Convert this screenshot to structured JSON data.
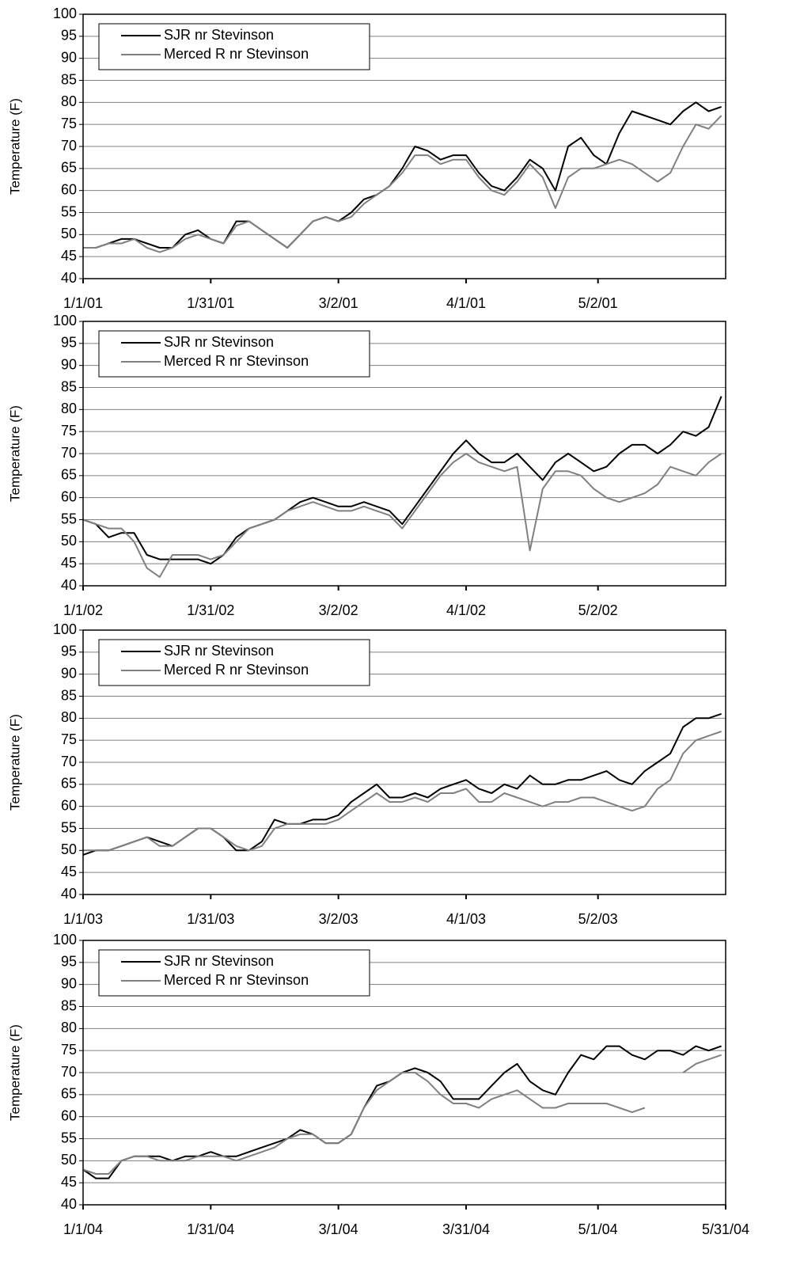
{
  "chart_data": [
    {
      "type": "line",
      "ylabel": "Temperature (F)",
      "legend": "upper left",
      "grid": true,
      "x": [
        0,
        3,
        6,
        9,
        12,
        15,
        18,
        21,
        24,
        27,
        30,
        33,
        36,
        39,
        42,
        45,
        48,
        51,
        54,
        57,
        60,
        63,
        66,
        69,
        72,
        75,
        78,
        81,
        84,
        87,
        90,
        93,
        96,
        99,
        102,
        105,
        108,
        111,
        114,
        117,
        120,
        123,
        126,
        129,
        132,
        135,
        138,
        141,
        144,
        147,
        150
      ],
      "xlim": [
        0,
        151
      ],
      "xticks": [
        {
          "value": 0,
          "label": "1/1/01"
        },
        {
          "value": 30,
          "label": "1/31/01"
        },
        {
          "value": 60,
          "label": "3/2/01"
        },
        {
          "value": 90,
          "label": "4/1/01"
        },
        {
          "value": 121,
          "label": "5/2/01"
        }
      ],
      "ylim": [
        40,
        100
      ],
      "yticks": [
        40,
        45,
        50,
        55,
        60,
        65,
        70,
        75,
        80,
        85,
        90,
        95,
        100
      ],
      "series": [
        {
          "name": "SJR nr Stevinson",
          "color": "#000000",
          "values": [
            47,
            47,
            48,
            49,
            49,
            48,
            47,
            47,
            50,
            51,
            49,
            48,
            53,
            53,
            51,
            49,
            47,
            50,
            53,
            54,
            53,
            55,
            58,
            59,
            61,
            65,
            70,
            69,
            67,
            68,
            68,
            64,
            61,
            60,
            63,
            67,
            65,
            60,
            70,
            72,
            68,
            66,
            73,
            78,
            77,
            76,
            75,
            78,
            80,
            78,
            79
          ]
        },
        {
          "name": "Merced R nr Stevinson",
          "color": "#808080",
          "values": [
            47,
            47,
            48,
            48,
            49,
            47,
            46,
            47,
            49,
            50,
            49,
            48,
            52,
            53,
            51,
            49,
            47,
            50,
            53,
            54,
            53,
            54,
            57,
            59,
            61,
            64,
            68,
            68,
            66,
            67,
            67,
            63,
            60,
            59,
            62,
            66,
            63,
            56,
            63,
            65,
            65,
            66,
            67,
            66,
            64,
            62,
            64,
            70,
            75,
            74,
            77
          ]
        }
      ]
    },
    {
      "type": "line",
      "ylabel": "Temperature (F)",
      "legend": "upper left",
      "grid": true,
      "x": [
        0,
        3,
        6,
        9,
        12,
        15,
        18,
        21,
        24,
        27,
        30,
        33,
        36,
        39,
        42,
        45,
        48,
        51,
        54,
        57,
        60,
        63,
        66,
        69,
        72,
        75,
        78,
        81,
        84,
        87,
        90,
        93,
        96,
        99,
        102,
        105,
        108,
        111,
        114,
        117,
        120,
        123,
        126,
        129,
        132,
        135,
        138,
        141,
        144,
        147,
        150
      ],
      "xlim": [
        0,
        151
      ],
      "xticks": [
        {
          "value": 0,
          "label": "1/1/02"
        },
        {
          "value": 30,
          "label": "1/31/02"
        },
        {
          "value": 60,
          "label": "3/2/02"
        },
        {
          "value": 90,
          "label": "4/1/02"
        },
        {
          "value": 121,
          "label": "5/2/02"
        }
      ],
      "ylim": [
        40,
        100
      ],
      "yticks": [
        40,
        45,
        50,
        55,
        60,
        65,
        70,
        75,
        80,
        85,
        90,
        95,
        100
      ],
      "series": [
        {
          "name": "SJR nr Stevinson",
          "color": "#000000",
          "values": [
            55,
            54,
            51,
            52,
            52,
            47,
            46,
            46,
            46,
            46,
            45,
            47,
            51,
            53,
            54,
            55,
            57,
            59,
            60,
            59,
            58,
            58,
            59,
            58,
            57,
            54,
            58,
            62,
            66,
            70,
            73,
            70,
            68,
            68,
            70,
            67,
            64,
            68,
            70,
            68,
            66,
            67,
            70,
            72,
            72,
            70,
            72,
            75,
            74,
            76,
            83
          ]
        },
        {
          "name": "Merced R nr Stevinson",
          "color": "#808080",
          "values": [
            55,
            54,
            53,
            53,
            50,
            44,
            42,
            47,
            47,
            47,
            46,
            47,
            50,
            53,
            54,
            55,
            57,
            58,
            59,
            58,
            57,
            57,
            58,
            57,
            56,
            53,
            57,
            61,
            65,
            68,
            70,
            68,
            67,
            66,
            67,
            48,
            62,
            66,
            66,
            65,
            62,
            60,
            59,
            60,
            61,
            63,
            67,
            66,
            65,
            68,
            70
          ]
        }
      ]
    },
    {
      "type": "line",
      "ylabel": "Temperature (F)",
      "legend": "upper left",
      "grid": true,
      "x": [
        0,
        3,
        6,
        9,
        12,
        15,
        18,
        21,
        24,
        27,
        30,
        33,
        36,
        39,
        42,
        45,
        48,
        51,
        54,
        57,
        60,
        63,
        66,
        69,
        72,
        75,
        78,
        81,
        84,
        87,
        90,
        93,
        96,
        99,
        102,
        105,
        108,
        111,
        114,
        117,
        120,
        123,
        126,
        129,
        132,
        135,
        138,
        141,
        144,
        147,
        150
      ],
      "xlim": [
        0,
        151
      ],
      "xticks": [
        {
          "value": 0,
          "label": "1/1/03"
        },
        {
          "value": 30,
          "label": "1/31/03"
        },
        {
          "value": 60,
          "label": "3/2/03"
        },
        {
          "value": 90,
          "label": "4/1/03"
        },
        {
          "value": 121,
          "label": "5/2/03"
        }
      ],
      "ylim": [
        40,
        100
      ],
      "yticks": [
        40,
        45,
        50,
        55,
        60,
        65,
        70,
        75,
        80,
        85,
        90,
        95,
        100
      ],
      "series": [
        {
          "name": "SJR nr Stevinson",
          "color": "#000000",
          "values": [
            49,
            50,
            50,
            51,
            52,
            53,
            52,
            51,
            53,
            55,
            55,
            53,
            50,
            50,
            52,
            57,
            56,
            56,
            57,
            57,
            58,
            61,
            63,
            65,
            62,
            62,
            63,
            62,
            64,
            65,
            66,
            64,
            63,
            65,
            64,
            67,
            65,
            65,
            66,
            66,
            67,
            68,
            66,
            65,
            68,
            70,
            72,
            78,
            80,
            80,
            81
          ]
        },
        {
          "name": "Merced R nr Stevinson",
          "color": "#808080",
          "values": [
            50,
            50,
            50,
            51,
            52,
            53,
            51,
            51,
            53,
            55,
            55,
            53,
            51,
            50,
            51,
            55,
            56,
            56,
            56,
            56,
            57,
            59,
            61,
            63,
            61,
            61,
            62,
            61,
            63,
            63,
            64,
            61,
            61,
            63,
            62,
            61,
            60,
            61,
            61,
            62,
            62,
            61,
            60,
            59,
            60,
            64,
            66,
            72,
            75,
            76,
            77
          ]
        }
      ]
    },
    {
      "type": "line",
      "ylabel": "Temperature (F)",
      "legend": "upper left",
      "grid": true,
      "x": [
        0,
        3,
        6,
        9,
        12,
        15,
        18,
        21,
        24,
        27,
        30,
        33,
        36,
        39,
        42,
        45,
        48,
        51,
        54,
        57,
        60,
        63,
        66,
        69,
        72,
        75,
        78,
        81,
        84,
        87,
        90,
        93,
        96,
        99,
        102,
        105,
        108,
        111,
        114,
        117,
        120,
        123,
        126,
        129,
        132,
        135,
        138,
        141,
        144,
        147,
        150
      ],
      "xlim": [
        0,
        151
      ],
      "xticks": [
        {
          "value": 0,
          "label": "1/1/04"
        },
        {
          "value": 30,
          "label": "1/31/04"
        },
        {
          "value": 60,
          "label": "3/1/04"
        },
        {
          "value": 90,
          "label": "3/31/04"
        },
        {
          "value": 121,
          "label": "5/1/04"
        },
        {
          "value": 151,
          "label": "5/31/04"
        }
      ],
      "ylim": [
        40,
        100
      ],
      "yticks": [
        40,
        45,
        50,
        55,
        60,
        65,
        70,
        75,
        80,
        85,
        90,
        95,
        100
      ],
      "series": [
        {
          "name": "SJR nr Stevinson",
          "color": "#000000",
          "values": [
            48,
            46,
            46,
            50,
            51,
            51,
            51,
            50,
            51,
            51,
            52,
            51,
            51,
            52,
            53,
            54,
            55,
            57,
            56,
            54,
            54,
            56,
            62,
            67,
            68,
            70,
            71,
            70,
            68,
            64,
            64,
            64,
            67,
            70,
            72,
            68,
            66,
            65,
            70,
            74,
            73,
            76,
            76,
            74,
            73,
            75,
            75,
            74,
            76,
            75,
            76
          ]
        },
        {
          "name": "Merced R nr Stevinson",
          "color": "#808080",
          "values": [
            48,
            47,
            47,
            50,
            51,
            51,
            50,
            50,
            50,
            51,
            51,
            51,
            50,
            51,
            52,
            53,
            55,
            56,
            56,
            54,
            54,
            56,
            62,
            66,
            68,
            70,
            70,
            68,
            65,
            63,
            63,
            62,
            64,
            65,
            66,
            64,
            62,
            62,
            63,
            63,
            63,
            63,
            62,
            61,
            62,
            null,
            null,
            70,
            72,
            73,
            74
          ]
        }
      ]
    }
  ]
}
